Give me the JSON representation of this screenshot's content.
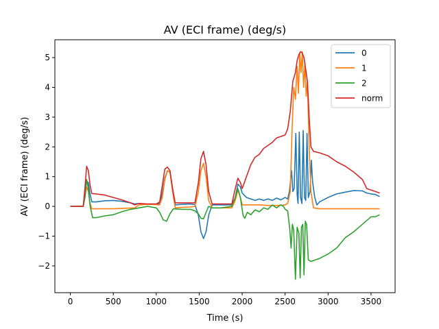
{
  "chart_data": {
    "type": "line",
    "title": "AV (ECI frame) (deg/s)",
    "xlabel": "Time (s)",
    "ylabel": "AV (ECI frame) (deg/s)",
    "xlim": [
      -180,
      3780
    ],
    "ylim": [
      -2.9,
      5.6
    ],
    "xticks": [
      0,
      500,
      1000,
      1500,
      2000,
      2500,
      3000,
      3500
    ],
    "yticks": [
      -2,
      -1,
      0,
      1,
      2,
      3,
      4,
      5
    ],
    "ytick_labels": [
      "−2",
      "−1",
      "0",
      "1",
      "2",
      "3",
      "4",
      "5"
    ],
    "grid": false,
    "legend_position": "upper right",
    "series": [
      {
        "name": "0",
        "color": "#1f77b4",
        "points": [
          [
            0,
            0
          ],
          [
            150,
            0
          ],
          [
            170,
            0.5
          ],
          [
            190,
            0.85
          ],
          [
            210,
            0.8
          ],
          [
            230,
            0.4
          ],
          [
            250,
            0.15
          ],
          [
            300,
            0.15
          ],
          [
            400,
            0.19
          ],
          [
            500,
            0.2
          ],
          [
            600,
            0.17
          ],
          [
            700,
            0.12
          ],
          [
            750,
            0.08
          ],
          [
            800,
            0.1
          ],
          [
            900,
            0.07
          ],
          [
            1000,
            0.07
          ],
          [
            1040,
            0.1
          ],
          [
            1070,
            0.45
          ],
          [
            1100,
            0.95
          ],
          [
            1130,
            1.2
          ],
          [
            1160,
            1.15
          ],
          [
            1190,
            0.6
          ],
          [
            1220,
            0.05
          ],
          [
            1300,
            0.07
          ],
          [
            1400,
            0.08
          ],
          [
            1450,
            0.06
          ],
          [
            1490,
            -0.3
          ],
          [
            1520,
            -0.85
          ],
          [
            1550,
            -1.08
          ],
          [
            1580,
            -0.85
          ],
          [
            1610,
            -0.3
          ],
          [
            1650,
            0.05
          ],
          [
            1750,
            0.05
          ],
          [
            1880,
            0.05
          ],
          [
            1920,
            0.3
          ],
          [
            1950,
            0.75
          ],
          [
            1980,
            0.65
          ],
          [
            2000,
            0.45
          ],
          [
            2050,
            0.3
          ],
          [
            2100,
            0.25
          ],
          [
            2150,
            0.2
          ],
          [
            2200,
            0.25
          ],
          [
            2250,
            0.2
          ],
          [
            2300,
            0.25
          ],
          [
            2350,
            0.2
          ],
          [
            2400,
            0.28
          ],
          [
            2450,
            0.22
          ],
          [
            2500,
            0.3
          ],
          [
            2530,
            0.25
          ],
          [
            2550,
            0.5
          ],
          [
            2575,
            1.2
          ],
          [
            2590,
            0.5
          ],
          [
            2605,
            0.6
          ],
          [
            2625,
            2.45
          ],
          [
            2640,
            0.4
          ],
          [
            2650,
            0.1
          ],
          [
            2665,
            2.5
          ],
          [
            2680,
            0.3
          ],
          [
            2695,
            0.1
          ],
          [
            2710,
            2.55
          ],
          [
            2725,
            0.3
          ],
          [
            2740,
            0.2
          ],
          [
            2755,
            2.45
          ],
          [
            2770,
            0.3
          ],
          [
            2790,
            0.5
          ],
          [
            2805,
            1.55
          ],
          [
            2820,
            0.8
          ],
          [
            2845,
            0.3
          ],
          [
            2870,
            0.05
          ],
          [
            2900,
            0.15
          ],
          [
            3000,
            0.3
          ],
          [
            3100,
            0.42
          ],
          [
            3200,
            0.48
          ],
          [
            3300,
            0.53
          ],
          [
            3400,
            0.52
          ],
          [
            3450,
            0.45
          ],
          [
            3500,
            0.42
          ],
          [
            3550,
            0.4
          ],
          [
            3600,
            0.33
          ]
        ]
      },
      {
        "name": "1",
        "color": "#ff7f0e",
        "points": [
          [
            0,
            0
          ],
          [
            150,
            0
          ],
          [
            170,
            0.3
          ],
          [
            190,
            0.65
          ],
          [
            210,
            0.5
          ],
          [
            230,
            0.1
          ],
          [
            250,
            -0.08
          ],
          [
            400,
            -0.08
          ],
          [
            500,
            -0.08
          ],
          [
            600,
            -0.07
          ],
          [
            750,
            -0.05
          ],
          [
            800,
            0.05
          ],
          [
            900,
            0.07
          ],
          [
            1000,
            0.06
          ],
          [
            1040,
            0.05
          ],
          [
            1070,
            0.3
          ],
          [
            1100,
            0.9
          ],
          [
            1130,
            1.2
          ],
          [
            1160,
            1.15
          ],
          [
            1190,
            0.5
          ],
          [
            1220,
            -0.05
          ],
          [
            1300,
            -0.03
          ],
          [
            1400,
            -0.02
          ],
          [
            1450,
            0.0
          ],
          [
            1490,
            0.5
          ],
          [
            1520,
            1.2
          ],
          [
            1550,
            1.45
          ],
          [
            1580,
            1.0
          ],
          [
            1610,
            0.2
          ],
          [
            1650,
            -0.05
          ],
          [
            1750,
            -0.05
          ],
          [
            1880,
            -0.05
          ],
          [
            1920,
            0.2
          ],
          [
            1950,
            0.55
          ],
          [
            1980,
            0.3
          ],
          [
            2000,
            0.05
          ],
          [
            2100,
            0.05
          ],
          [
            2200,
            0.05
          ],
          [
            2300,
            0.03
          ],
          [
            2400,
            0.03
          ],
          [
            2500,
            0.05
          ],
          [
            2530,
            0.1
          ],
          [
            2560,
            0.5
          ],
          [
            2580,
            2.5
          ],
          [
            2600,
            4.0
          ],
          [
            2620,
            3.6
          ],
          [
            2640,
            4.7
          ],
          [
            2655,
            3.8
          ],
          [
            2670,
            5.15
          ],
          [
            2685,
            4.5
          ],
          [
            2700,
            5.2
          ],
          [
            2715,
            4.0
          ],
          [
            2730,
            4.8
          ],
          [
            2745,
            3.7
          ],
          [
            2760,
            4.2
          ],
          [
            2780,
            2.0
          ],
          [
            2800,
            0.5
          ],
          [
            2830,
            -0.05
          ],
          [
            2900,
            -0.08
          ],
          [
            3000,
            -0.08
          ],
          [
            3200,
            -0.08
          ],
          [
            3400,
            -0.08
          ],
          [
            3600,
            -0.08
          ]
        ]
      },
      {
        "name": "2",
        "color": "#2ca02c",
        "points": [
          [
            0,
            0
          ],
          [
            150,
            0
          ],
          [
            170,
            0.3
          ],
          [
            190,
            0.9
          ],
          [
            210,
            0.6
          ],
          [
            230,
            0.0
          ],
          [
            260,
            -0.38
          ],
          [
            300,
            -0.38
          ],
          [
            400,
            -0.32
          ],
          [
            500,
            -0.28
          ],
          [
            600,
            -0.18
          ],
          [
            700,
            -0.1
          ],
          [
            800,
            -0.05
          ],
          [
            900,
            0.0
          ],
          [
            1000,
            -0.05
          ],
          [
            1040,
            -0.2
          ],
          [
            1080,
            -0.45
          ],
          [
            1120,
            -0.5
          ],
          [
            1160,
            -0.25
          ],
          [
            1200,
            -0.08
          ],
          [
            1300,
            -0.1
          ],
          [
            1400,
            -0.1
          ],
          [
            1450,
            -0.15
          ],
          [
            1490,
            -0.25
          ],
          [
            1520,
            -0.4
          ],
          [
            1550,
            -0.42
          ],
          [
            1580,
            -0.2
          ],
          [
            1610,
            0.0
          ],
          [
            1650,
            -0.05
          ],
          [
            1750,
            -0.05
          ],
          [
            1880,
            0.0
          ],
          [
            1920,
            0.3
          ],
          [
            1950,
            0.6
          ],
          [
            1980,
            0.3
          ],
          [
            2010,
            -0.3
          ],
          [
            2030,
            -0.4
          ],
          [
            2060,
            -0.2
          ],
          [
            2100,
            -0.28
          ],
          [
            2150,
            -0.12
          ],
          [
            2200,
            -0.18
          ],
          [
            2250,
            -0.05
          ],
          [
            2300,
            -0.1
          ],
          [
            2350,
            0.05
          ],
          [
            2400,
            -0.05
          ],
          [
            2450,
            0.05
          ],
          [
            2480,
            0.0
          ],
          [
            2500,
            -0.1
          ],
          [
            2530,
            -0.15
          ],
          [
            2555,
            -0.8
          ],
          [
            2570,
            -1.4
          ],
          [
            2585,
            -0.6
          ],
          [
            2600,
            -0.8
          ],
          [
            2620,
            -2.45
          ],
          [
            2640,
            -0.7
          ],
          [
            2660,
            -0.9
          ],
          [
            2675,
            -2.4
          ],
          [
            2690,
            -0.7
          ],
          [
            2705,
            -0.6
          ],
          [
            2720,
            -2.3
          ],
          [
            2735,
            -0.5
          ],
          [
            2750,
            -0.6
          ],
          [
            2770,
            -1.8
          ],
          [
            2800,
            -1.85
          ],
          [
            2850,
            -1.8
          ],
          [
            2900,
            -1.75
          ],
          [
            3000,
            -1.6
          ],
          [
            3100,
            -1.4
          ],
          [
            3200,
            -1.05
          ],
          [
            3300,
            -0.85
          ],
          [
            3400,
            -0.6
          ],
          [
            3500,
            -0.35
          ],
          [
            3550,
            -0.35
          ],
          [
            3600,
            -0.28
          ]
        ]
      },
      {
        "name": "norm",
        "color": "#d62728",
        "points": [
          [
            0,
            0
          ],
          [
            150,
            0
          ],
          [
            170,
            0.6
          ],
          [
            190,
            1.35
          ],
          [
            210,
            1.2
          ],
          [
            230,
            0.7
          ],
          [
            250,
            0.43
          ],
          [
            300,
            0.42
          ],
          [
            400,
            0.38
          ],
          [
            500,
            0.3
          ],
          [
            600,
            0.22
          ],
          [
            700,
            0.12
          ],
          [
            750,
            0.05
          ],
          [
            800,
            0.1
          ],
          [
            900,
            0.08
          ],
          [
            1000,
            0.08
          ],
          [
            1040,
            0.15
          ],
          [
            1070,
            0.7
          ],
          [
            1100,
            1.25
          ],
          [
            1130,
            1.32
          ],
          [
            1160,
            1.2
          ],
          [
            1190,
            0.6
          ],
          [
            1220,
            0.12
          ],
          [
            1300,
            0.12
          ],
          [
            1400,
            0.12
          ],
          [
            1450,
            0.12
          ],
          [
            1490,
            0.8
          ],
          [
            1520,
            1.6
          ],
          [
            1550,
            1.85
          ],
          [
            1580,
            1.4
          ],
          [
            1610,
            0.5
          ],
          [
            1650,
            0.08
          ],
          [
            1750,
            0.08
          ],
          [
            1880,
            0.08
          ],
          [
            1920,
            0.6
          ],
          [
            1950,
            0.95
          ],
          [
            1980,
            0.8
          ],
          [
            2000,
            0.6
          ],
          [
            2050,
            1.0
          ],
          [
            2100,
            1.4
          ],
          [
            2150,
            1.65
          ],
          [
            2200,
            1.75
          ],
          [
            2250,
            1.95
          ],
          [
            2300,
            2.05
          ],
          [
            2350,
            2.15
          ],
          [
            2400,
            2.3
          ],
          [
            2450,
            2.35
          ],
          [
            2500,
            2.4
          ],
          [
            2530,
            2.6
          ],
          [
            2560,
            3.2
          ],
          [
            2590,
            4.2
          ],
          [
            2620,
            4.5
          ],
          [
            2640,
            4.9
          ],
          [
            2660,
            5.1
          ],
          [
            2680,
            5.2
          ],
          [
            2700,
            5.15
          ],
          [
            2720,
            5.0
          ],
          [
            2740,
            4.6
          ],
          [
            2760,
            4.2
          ],
          [
            2780,
            3.0
          ],
          [
            2800,
            2.0
          ],
          [
            2830,
            1.85
          ],
          [
            2900,
            1.8
          ],
          [
            3000,
            1.7
          ],
          [
            3100,
            1.5
          ],
          [
            3200,
            1.35
          ],
          [
            3300,
            1.15
          ],
          [
            3400,
            0.9
          ],
          [
            3450,
            0.6
          ],
          [
            3500,
            0.55
          ],
          [
            3550,
            0.5
          ],
          [
            3600,
            0.45
          ]
        ]
      }
    ]
  }
}
